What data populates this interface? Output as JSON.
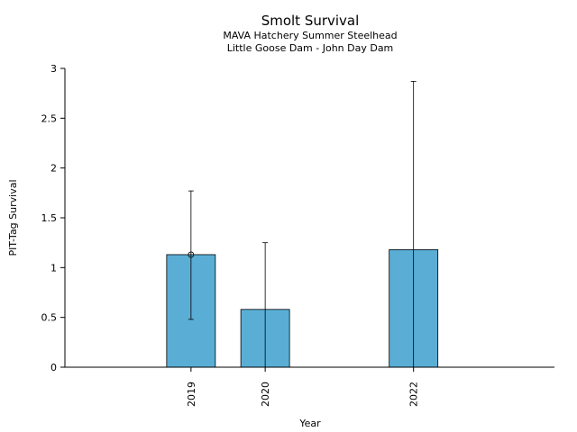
{
  "chart_data": {
    "type": "bar",
    "title": "Smolt Survival",
    "subtitle": [
      "MAVA Hatchery Summer Steelhead",
      "Little Goose Dam - John Day Dam"
    ],
    "xlabel": "Year",
    "ylabel": "PIT-Tag Survival",
    "x": [
      2019,
      2020,
      2022
    ],
    "categories": [
      "2019",
      "2020",
      "2022"
    ],
    "values": [
      1.13,
      0.58,
      1.18
    ],
    "error_low": [
      0.48,
      0.0,
      0.0
    ],
    "error_high": [
      1.77,
      1.25,
      2.87
    ],
    "point_markers": [
      1.13,
      null,
      null
    ],
    "xlim": [
      2017.3,
      2023.9
    ],
    "ylim": [
      0,
      3
    ],
    "yticks": [
      0,
      0.5,
      1,
      1.5,
      2,
      2.5,
      3
    ],
    "ytick_labels": [
      "0",
      "0.5",
      "1",
      "1.5",
      "2",
      "2.5",
      "3"
    ],
    "grid": false,
    "colors": {
      "bar": "#5aaed6",
      "edge": "#000000"
    }
  }
}
